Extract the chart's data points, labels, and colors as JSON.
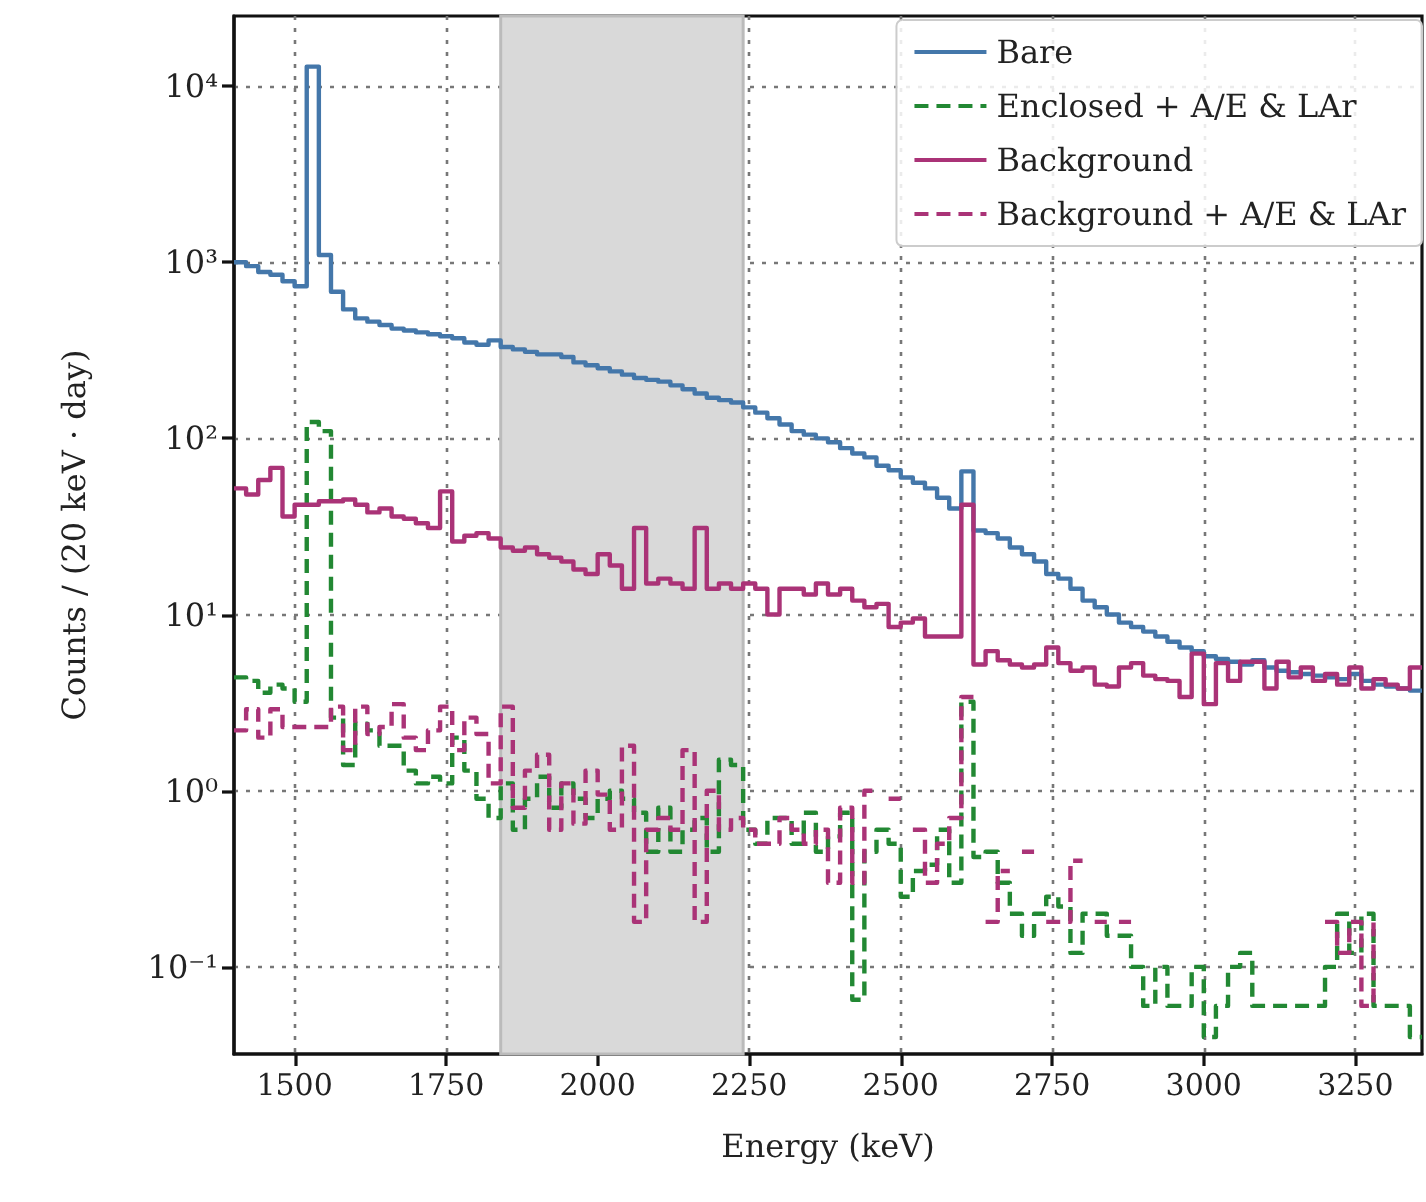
{
  "chart_data": {
    "type": "step",
    "xlabel": "Energy (keV)",
    "ylabel": "Counts / (20 keV · day)",
    "xlim": [
      1400,
      3360
    ],
    "xticks": [
      1500,
      1750,
      2000,
      2250,
      2500,
      2750,
      3000,
      3250
    ],
    "ylim": [
      0.032,
      25000
    ],
    "yticks": [
      {
        "value": 0.1,
        "label": "10⁻¹"
      },
      {
        "value": 1,
        "label": "10⁰"
      },
      {
        "value": 10,
        "label": "10¹"
      },
      {
        "value": 100,
        "label": "10²"
      },
      {
        "value": 1000,
        "label": "10³"
      },
      {
        "value": 10000,
        "label": "10⁴"
      }
    ],
    "log": "y",
    "grid": true,
    "legend": "top right",
    "marker": "none",
    "bands": [
      {
        "axis": "x",
        "from": 1840,
        "to": 2240,
        "color": "#d9d9d9"
      }
    ],
    "series": [
      {
        "name": "Bare",
        "color": "#4477aa",
        "line_style": "solid",
        "x": [
          1400,
          1420,
          1440,
          1460,
          1480,
          1500,
          1520,
          1540,
          1560,
          1580,
          1600,
          1620,
          1640,
          1660,
          1680,
          1700,
          1720,
          1740,
          1760,
          1780,
          1800,
          1820,
          1840,
          1860,
          1880,
          1900,
          1920,
          1940,
          1960,
          1980,
          2000,
          2020,
          2040,
          2060,
          2080,
          2100,
          2120,
          2140,
          2160,
          2180,
          2200,
          2220,
          2240,
          2260,
          2280,
          2300,
          2320,
          2340,
          2360,
          2380,
          2400,
          2420,
          2440,
          2460,
          2480,
          2500,
          2520,
          2540,
          2560,
          2580,
          2600,
          2620,
          2640,
          2660,
          2680,
          2700,
          2720,
          2740,
          2760,
          2780,
          2800,
          2820,
          2840,
          2860,
          2880,
          2900,
          2920,
          2940,
          2960,
          2980,
          3000,
          3020,
          3040,
          3060,
          3080,
          3100,
          3120,
          3140,
          3160,
          3180,
          3200,
          3220,
          3240,
          3260,
          3280,
          3300,
          3320,
          3340,
          3360
        ],
        "values": [
          1000,
          950,
          880,
          850,
          780,
          730,
          12900,
          1100,
          680,
          540,
          480,
          460,
          440,
          420,
          410,
          400,
          390,
          380,
          370,
          350,
          340,
          360,
          330,
          320,
          310,
          300,
          300,
          290,
          270,
          260,
          250,
          240,
          230,
          220,
          215,
          210,
          200,
          190,
          180,
          170,
          165,
          160,
          150,
          140,
          130,
          120,
          110,
          105,
          100,
          95,
          88,
          82,
          78,
          70,
          66,
          60,
          56,
          52,
          46,
          40,
          65,
          30,
          29,
          27,
          24,
          22,
          20,
          17,
          16,
          14,
          12,
          11,
          10,
          9,
          8.5,
          8,
          7.5,
          7,
          6.5,
          6.2,
          5.8,
          5.6,
          5.4,
          5.2,
          5.5,
          5,
          4.8,
          4.7,
          4.6,
          4.5,
          4.4,
          4.3,
          4.6,
          4.2,
          4,
          3.9,
          3.8,
          3.7,
          3.7
        ]
      },
      {
        "name": "Enclosed + A/E & LAr",
        "color": "#228833",
        "line_style": "dashed",
        "x": [
          1400,
          1420,
          1440,
          1460,
          1480,
          1500,
          1520,
          1540,
          1560,
          1580,
          1600,
          1620,
          1640,
          1660,
          1680,
          1700,
          1720,
          1740,
          1760,
          1780,
          1800,
          1820,
          1840,
          1860,
          1880,
          1900,
          1920,
          1940,
          1960,
          1980,
          2000,
          2020,
          2040,
          2060,
          2080,
          2100,
          2120,
          2140,
          2160,
          2180,
          2200,
          2220,
          2240,
          2260,
          2280,
          2300,
          2320,
          2340,
          2360,
          2380,
          2400,
          2420,
          2440,
          2460,
          2480,
          2500,
          2520,
          2540,
          2560,
          2580,
          2600,
          2620,
          2640,
          2660,
          2680,
          2700,
          2720,
          2740,
          2760,
          2780,
          2800,
          2820,
          2840,
          2860,
          2880,
          2900,
          2920,
          2940,
          2960,
          2980,
          3000,
          3020,
          3040,
          3060,
          3080,
          3100,
          3120,
          3140,
          3160,
          3180,
          3200,
          3220,
          3240,
          3260,
          3280,
          3300,
          3320,
          3340,
          3360
        ],
        "values": [
          4.4,
          4.2,
          3.6,
          4,
          3.8,
          3.2,
          124,
          110,
          2.6,
          1.4,
          2.4,
          2.2,
          1.8,
          1.8,
          1.3,
          1.1,
          1.2,
          1.1,
          2,
          1.3,
          0.9,
          0.7,
          1.1,
          0.6,
          0.9,
          1.2,
          0.8,
          1.1,
          0.9,
          0.7,
          0.9,
          1,
          0.9,
          0.75,
          0.45,
          0.8,
          0.45,
          0.6,
          0.7,
          0.45,
          1.5,
          1.4,
          0.6,
          0.5,
          0.7,
          0.7,
          0.5,
          0.75,
          0.45,
          0.55,
          0.75,
          0.065,
          0.45,
          0.6,
          0.5,
          0.25,
          0.35,
          0.38,
          0.6,
          0.3,
          3.2,
          0.42,
          0.45,
          0.3,
          0.2,
          0.15,
          0.2,
          0.25,
          0.22,
          0.12,
          0.2,
          0.2,
          0.15,
          0.15,
          0.1,
          0.06,
          0.1,
          0.06,
          0.06,
          0.1,
          0.04,
          0.06,
          0.1,
          0.12,
          0.06,
          0.06,
          0.06,
          0.06,
          0.06,
          0.06,
          0.1,
          0.2,
          0.12,
          0.2,
          0.06,
          0.06,
          0.06,
          0.04,
          0.04
        ]
      },
      {
        "name": "Background",
        "color": "#aa3377",
        "line_style": "solid",
        "x": [
          1400,
          1420,
          1440,
          1460,
          1480,
          1500,
          1520,
          1540,
          1560,
          1580,
          1600,
          1620,
          1640,
          1660,
          1680,
          1700,
          1720,
          1740,
          1760,
          1780,
          1800,
          1820,
          1840,
          1860,
          1880,
          1900,
          1920,
          1940,
          1960,
          1980,
          2000,
          2020,
          2040,
          2060,
          2080,
          2100,
          2120,
          2140,
          2160,
          2180,
          2200,
          2220,
          2240,
          2260,
          2280,
          2300,
          2320,
          2340,
          2360,
          2380,
          2400,
          2420,
          2440,
          2460,
          2480,
          2500,
          2520,
          2540,
          2560,
          2580,
          2600,
          2620,
          2640,
          2660,
          2680,
          2700,
          2720,
          2740,
          2760,
          2780,
          2800,
          2820,
          2840,
          2860,
          2880,
          2900,
          2920,
          2940,
          2960,
          2980,
          3000,
          3020,
          3040,
          3060,
          3080,
          3100,
          3120,
          3140,
          3160,
          3180,
          3200,
          3220,
          3240,
          3260,
          3280,
          3300,
          3320,
          3340,
          3360
        ],
        "values": [
          52,
          48,
          58,
          68,
          36,
          42,
          42,
          44,
          44,
          45,
          42,
          38,
          40,
          36,
          35,
          33,
          31,
          50,
          26,
          28,
          29,
          27,
          24,
          23,
          24,
          22,
          21,
          20,
          18,
          17,
          22,
          19,
          14,
          31,
          15,
          16,
          15,
          14,
          31,
          14,
          15,
          14,
          15,
          14,
          10,
          14,
          14,
          13,
          15,
          13,
          14,
          12,
          11,
          11.5,
          8.5,
          9,
          9.5,
          7.5,
          7.5,
          7.5,
          42,
          5.2,
          6.2,
          5.5,
          5.2,
          5,
          5.2,
          6.5,
          5.3,
          4.8,
          5,
          4,
          3.9,
          5,
          5.3,
          4.5,
          4.3,
          4.2,
          3.4,
          6,
          3.1,
          5.3,
          4.2,
          5.4,
          5.4,
          3.8,
          5.4,
          4.4,
          5,
          4.2,
          4.6,
          4,
          5,
          3.8,
          4.3,
          4,
          3.8,
          5,
          5
        ]
      },
      {
        "name": "Background + A/E & LAr",
        "color": "#aa3377",
        "line_style": "dashed",
        "x": [
          1400,
          1420,
          1440,
          1460,
          1480,
          1500,
          1520,
          1540,
          1560,
          1580,
          1600,
          1620,
          1640,
          1660,
          1680,
          1700,
          1720,
          1740,
          1760,
          1780,
          1800,
          1820,
          1840,
          1860,
          1880,
          1900,
          1920,
          1940,
          1960,
          1980,
          2000,
          2020,
          2040,
          2060,
          2080,
          2100,
          2120,
          2140,
          2160,
          2180,
          2200,
          2220,
          2240,
          2260,
          2280,
          2300,
          2320,
          2340,
          2360,
          2380,
          2400,
          2420,
          2440,
          2460,
          2480,
          2500,
          2520,
          2540,
          2560,
          2580,
          2600,
          2620,
          2640,
          2660,
          2680,
          2700,
          2720,
          2740,
          2760,
          2780,
          2800,
          2820,
          2840,
          2860,
          2880,
          3200,
          3220,
          3240,
          3260,
          3280
        ],
        "values": [
          2.2,
          2.9,
          2,
          2.9,
          2.3,
          2.3,
          2.3,
          2.3,
          3,
          1.7,
          3,
          2.1,
          2.3,
          3.1,
          2,
          1.7,
          2.2,
          3,
          1.7,
          2.6,
          2.1,
          1.1,
          3,
          0.8,
          1.3,
          1.6,
          0.6,
          1.1,
          0.65,
          1.3,
          0.95,
          0.6,
          1.8,
          0.18,
          0.6,
          0.7,
          0.6,
          1.7,
          0.18,
          1,
          0.6,
          0.7,
          0.6,
          0.5,
          0.5,
          0.7,
          0.6,
          0.5,
          0.6,
          0.3,
          0.8,
          0.3,
          1,
          null,
          0.9,
          null,
          0.6,
          0.3,
          0.5,
          0.7,
          3.4,
          null,
          0.18,
          0.35,
          null,
          0.45,
          null,
          0.18,
          0.18,
          0.4,
          null,
          0.18,
          null,
          0.18,
          null,
          0.18,
          0.12,
          0.18,
          0.06,
          0.18
        ]
      }
    ]
  }
}
